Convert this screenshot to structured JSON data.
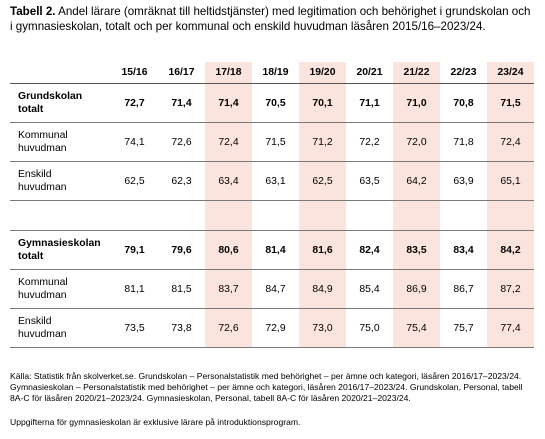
{
  "caption": {
    "label": "Tabell 2.",
    "text": "Andel lärare (omräknat till heltidstjänster) med legitimation och behörighet i grundskolan och i gymnasieskolan, totalt och per kommunal och enskild huvudman läsåren 2015/16–2023/24."
  },
  "table": {
    "years": [
      "15/16",
      "16/17",
      "17/18",
      "18/19",
      "19/20",
      "20/21",
      "21/22",
      "22/23",
      "23/24"
    ],
    "rows": {
      "grund_total": {
        "label_line1": "Grundskolan",
        "label_line2": "totalt",
        "values": [
          "72,7",
          "71,4",
          "71,4",
          "70,5",
          "70,1",
          "71,1",
          "71,0",
          "70,8",
          "71,5"
        ]
      },
      "grund_kommunal": {
        "label_line1": "Kommunal",
        "label_line2": "huvudman",
        "values": [
          "74,1",
          "72,6",
          "72,4",
          "71,5",
          "71,2",
          "72,2",
          "72,0",
          "71,8",
          "72,4"
        ]
      },
      "grund_enskild": {
        "label_line1": "Enskild",
        "label_line2": "huvudman",
        "values": [
          "62,5",
          "62,3",
          "63,4",
          "63,1",
          "62,5",
          "63,5",
          "64,2",
          "63,9",
          "65,1"
        ]
      },
      "gymn_total": {
        "label_line1": "Gymnasieskolan",
        "label_line2": "totalt",
        "values": [
          "79,1",
          "79,6",
          "80,6",
          "81,4",
          "81,6",
          "82,4",
          "83,5",
          "83,4",
          "84,2"
        ]
      },
      "gymn_kommunal": {
        "label_line1": "Kommunal",
        "label_line2": "huvudman",
        "values": [
          "81,1",
          "81,5",
          "83,7",
          "84,7",
          "84,9",
          "85,4",
          "86,9",
          "86,7",
          "87,2"
        ]
      },
      "gymn_enskild": {
        "label_line1": "Enskild",
        "label_line2": "huvudman",
        "values": [
          "73,5",
          "73,8",
          "72,6",
          "72,9",
          "73,0",
          "75,0",
          "75,4",
          "75,7",
          "77,4"
        ]
      }
    }
  },
  "source": "Källa: Statistik från skolverket.se. Grundskolan – Personalstatistik med behörighet – per ämne och kategori, läsåren 2016/17–2023/24. Gymnasieskolan – Personalstatistik med behörighet – per ämne och kategori, läsåren 2016/17–2023/24. Grundskolan, Personal, tabell 8A-C för läsåren 2020/21–2023/24. Gymnasieskolan, Personal, tabell 8A-C för läsåren 2020/21–2023/24.",
  "note": "Uppgifterna för gymnasieskolan är exklusive lärare på introduktionsprogram.",
  "colors": {
    "highlight_column": "#fbe4de",
    "rule": "#7a7a7a"
  }
}
